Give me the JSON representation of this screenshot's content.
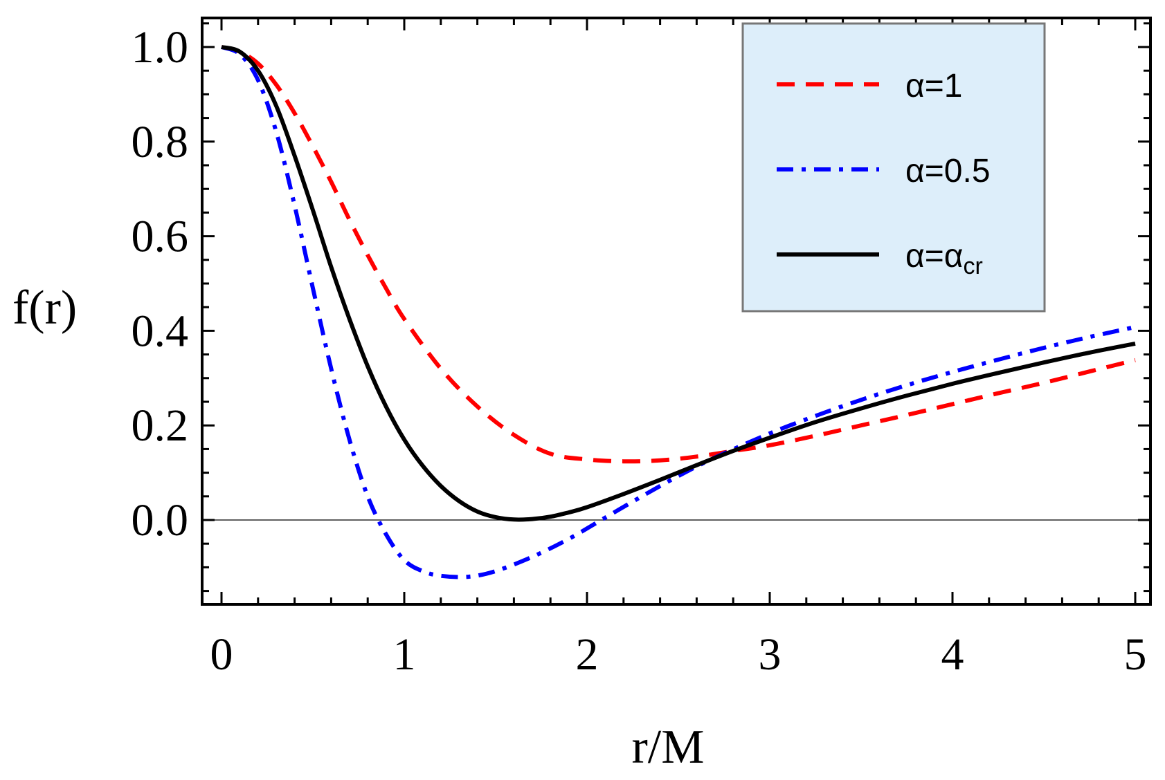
{
  "chart_data": {
    "type": "line",
    "title": "",
    "xlabel": "r/M",
    "ylabel": "f(r)",
    "xlim": [
      0,
      5
    ],
    "ylim": [
      -0.18,
      1.06
    ],
    "x_ticks": [
      "0",
      "1",
      "2",
      "3",
      "4",
      "5"
    ],
    "y_ticks": [
      "0.0",
      "0.2",
      "0.4",
      "0.6",
      "0.8",
      "1.0"
    ],
    "grid": false,
    "legend_position": "top-right",
    "series": [
      {
        "name": "α=1",
        "legend_main": "α=1",
        "legend_sub": "",
        "color": "#ff0000",
        "style": "dashed",
        "x": [
          0,
          0.1,
          0.2,
          0.3,
          0.4,
          0.5,
          0.6,
          0.7,
          0.8,
          0.9,
          1.0,
          1.2,
          1.4,
          1.6,
          1.8,
          2.0,
          2.2,
          2.4,
          2.6,
          2.8,
          3.0,
          3.25,
          3.5,
          3.75,
          4.0,
          4.25,
          4.5,
          4.75,
          5.0
        ],
        "y": [
          1.0,
          0.99,
          0.965,
          0.92,
          0.86,
          0.79,
          0.715,
          0.635,
          0.56,
          0.49,
          0.425,
          0.32,
          0.24,
          0.18,
          0.14,
          0.128,
          0.124,
          0.126,
          0.134,
          0.146,
          0.158,
          0.178,
          0.2,
          0.222,
          0.245,
          0.268,
          0.29,
          0.314,
          0.338
        ]
      },
      {
        "name": "α=0.5",
        "legend_main": "α=0.5",
        "legend_sub": "",
        "color": "#0000ff",
        "style": "dashdot",
        "x": [
          0,
          0.1,
          0.2,
          0.3,
          0.4,
          0.5,
          0.6,
          0.7,
          0.8,
          0.9,
          1.0,
          1.1,
          1.2,
          1.35,
          1.5,
          1.7,
          1.9,
          2.1,
          2.3,
          2.5,
          2.7,
          3.0,
          3.25,
          3.5,
          3.75,
          4.0,
          4.25,
          4.5,
          4.75,
          5.0
        ],
        "y": [
          1.0,
          0.985,
          0.93,
          0.82,
          0.665,
          0.49,
          0.32,
          0.17,
          0.05,
          -0.03,
          -0.085,
          -0.108,
          -0.118,
          -0.12,
          -0.108,
          -0.078,
          -0.04,
          0.005,
          0.05,
          0.093,
          0.132,
          0.183,
          0.22,
          0.254,
          0.285,
          0.313,
          0.339,
          0.364,
          0.387,
          0.408
        ]
      },
      {
        "name": "α=α_cr",
        "legend_main": "α=α",
        "legend_sub": "cr",
        "color": "#000000",
        "style": "solid",
        "x": [
          0,
          0.1,
          0.2,
          0.3,
          0.4,
          0.5,
          0.6,
          0.7,
          0.8,
          0.9,
          1.0,
          1.1,
          1.2,
          1.3,
          1.4,
          1.5,
          1.6,
          1.7,
          1.8,
          1.9,
          2.0,
          2.2,
          2.4,
          2.6,
          2.8,
          3.0,
          3.25,
          3.5,
          3.75,
          4.0,
          4.25,
          4.5,
          4.75,
          5.0
        ],
        "y": [
          1.0,
          0.99,
          0.95,
          0.875,
          0.77,
          0.655,
          0.535,
          0.425,
          0.325,
          0.24,
          0.17,
          0.115,
          0.072,
          0.04,
          0.018,
          0.006,
          0.001,
          0.002,
          0.007,
          0.016,
          0.027,
          0.055,
          0.085,
          0.116,
          0.146,
          0.174,
          0.207,
          0.236,
          0.263,
          0.288,
          0.311,
          0.333,
          0.354,
          0.373
        ]
      }
    ]
  }
}
